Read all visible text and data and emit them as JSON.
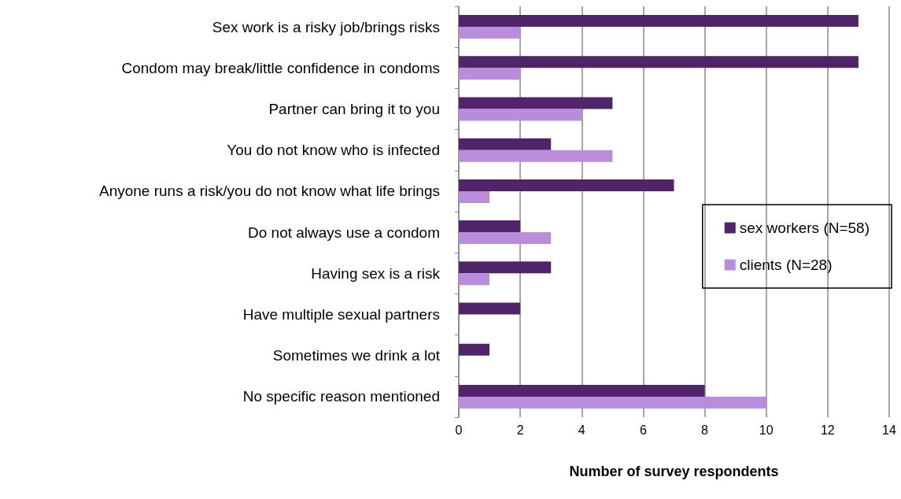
{
  "chart_data": {
    "type": "bar",
    "orientation": "horizontal",
    "xlabel": "Number of survey respondents",
    "categories": [
      "Sex work is a risky job/brings risks",
      "Condom may break/little confidence in condoms",
      "Partner can bring it to you",
      "You do not know who is infected",
      "Anyone runs a risk/you do not know what life brings",
      "Do not always use a condom",
      "Having sex is a risk",
      "Have multiple sexual partners",
      "Sometimes we drink a lot",
      "No specific reason mentioned"
    ],
    "series": [
      {
        "name": "sex workers (N=58)",
        "color": "#4f2468",
        "values": [
          13,
          13,
          5,
          3,
          7,
          2,
          3,
          2,
          1,
          8
        ]
      },
      {
        "name": "clients (N=28)",
        "color": "#b98ddc",
        "values": [
          2,
          2,
          4,
          5,
          1,
          3,
          1,
          0,
          0,
          10
        ]
      }
    ],
    "xlim": [
      0,
      14
    ],
    "xticks": [
      0,
      2,
      4,
      6,
      8,
      10,
      12,
      14
    ],
    "grid": "x",
    "legend": "right"
  }
}
